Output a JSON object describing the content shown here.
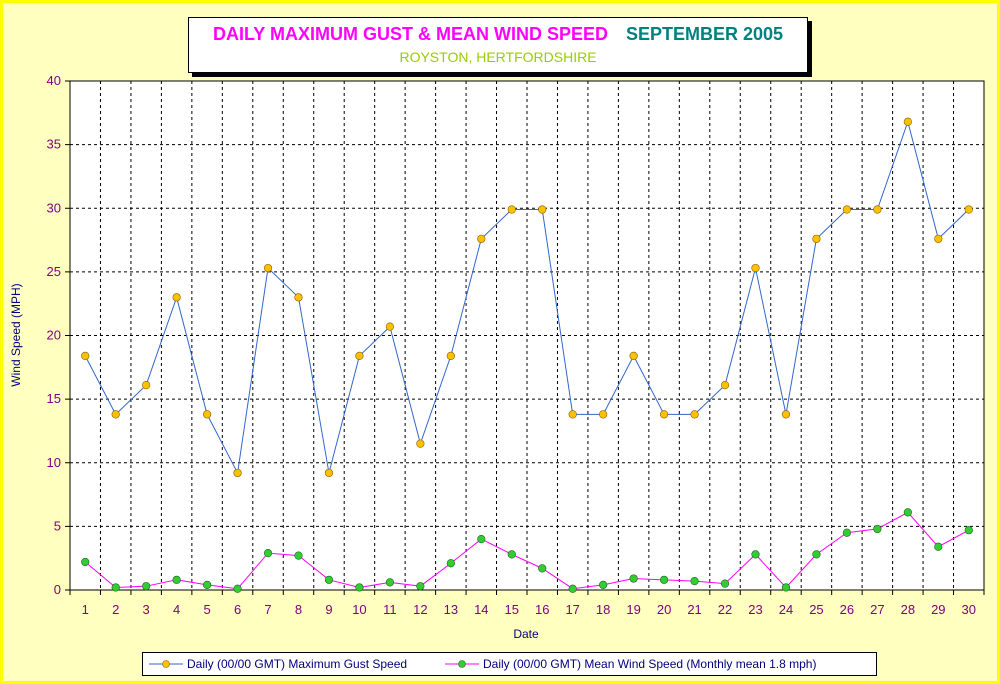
{
  "title": {
    "main": "DAILY MAXIMUM GUST & MEAN WIND SPEED",
    "month": "SEPTEMBER 2005",
    "subtitle": "ROYSTON, HERTFORDSHIRE"
  },
  "colors": {
    "background": "#ffffc0",
    "border": "#ffff00",
    "gust_line": "#3366cc",
    "gust_marker": "#ffc000",
    "mean_line": "#ff00ff",
    "mean_marker": "#33cc33",
    "tick_text": "#800080",
    "axis_label": "#000080"
  },
  "chart_data": {
    "type": "line",
    "xlabel": "Date",
    "ylabel": "Wind Speed (MPH)",
    "ylim": [
      0,
      40
    ],
    "yticks": [
      0,
      5,
      10,
      15,
      20,
      25,
      30,
      35,
      40
    ],
    "grid": true,
    "legend_position": "bottom",
    "categories": [
      "1",
      "2",
      "3",
      "4",
      "5",
      "6",
      "7",
      "8",
      "9",
      "10",
      "11",
      "12",
      "13",
      "14",
      "15",
      "16",
      "17",
      "18",
      "19",
      "20",
      "21",
      "22",
      "23",
      "24",
      "25",
      "26",
      "27",
      "28",
      "29",
      "30"
    ],
    "series": [
      {
        "name": "Daily (00/00 GMT) Maximum Gust Speed",
        "values": [
          18.4,
          13.8,
          16.1,
          23.0,
          13.8,
          9.2,
          25.3,
          23.0,
          9.2,
          18.4,
          20.7,
          11.5,
          18.4,
          27.6,
          29.9,
          29.9,
          13.8,
          13.8,
          18.4,
          13.8,
          13.8,
          16.1,
          25.3,
          13.8,
          27.6,
          29.9,
          29.9,
          36.8,
          27.6,
          29.9
        ]
      },
      {
        "name": "Daily (00/00 GMT) Mean Wind Speed (Monthly mean 1.8 mph)",
        "values": [
          2.2,
          0.2,
          0.3,
          0.8,
          0.4,
          0.1,
          2.9,
          2.7,
          0.8,
          0.2,
          0.6,
          0.3,
          2.1,
          4.0,
          2.8,
          1.7,
          0.1,
          0.4,
          0.9,
          0.8,
          0.7,
          0.5,
          2.8,
          0.2,
          2.8,
          4.5,
          4.8,
          6.1,
          3.4,
          4.7
        ]
      }
    ]
  }
}
